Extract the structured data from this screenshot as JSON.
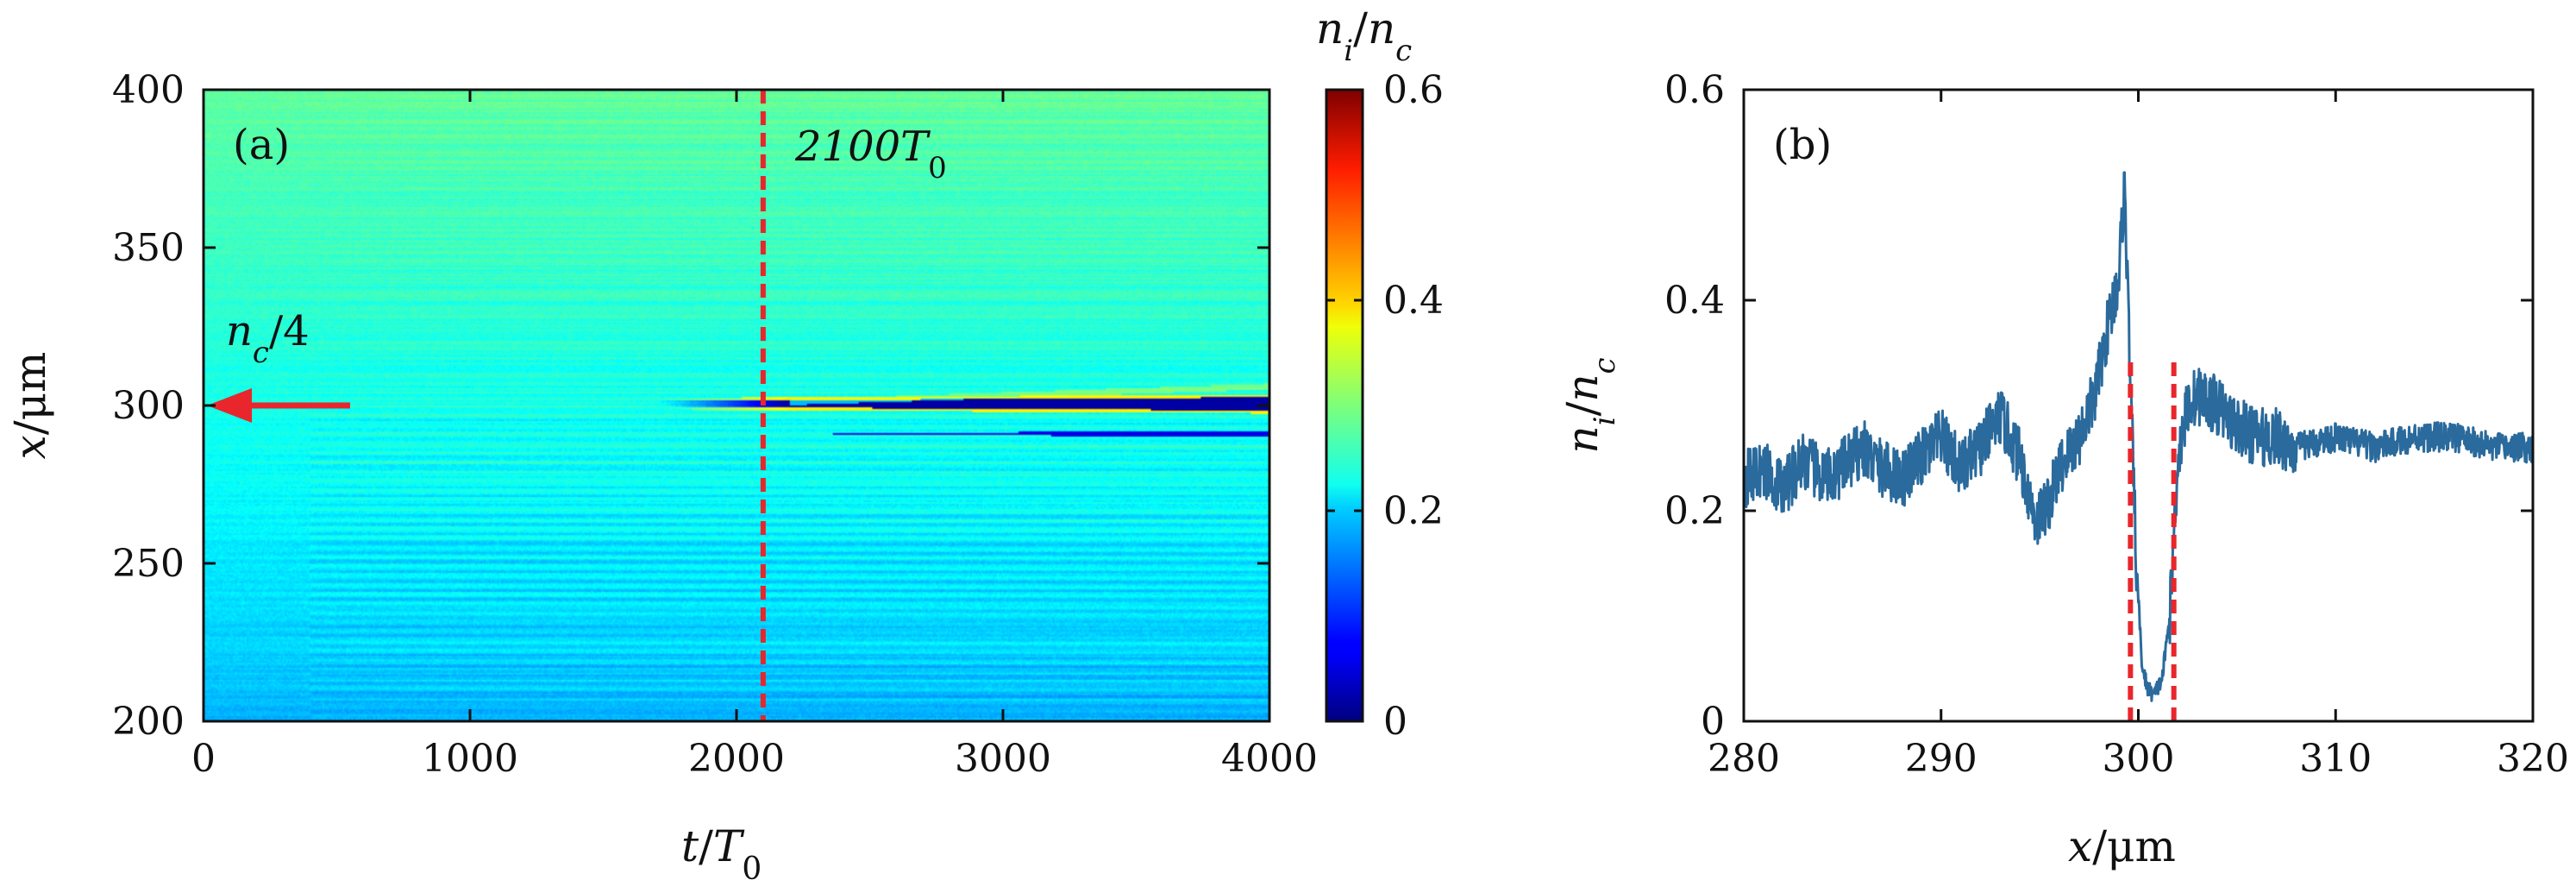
{
  "chart_data": [
    {
      "panel": "(a)",
      "type": "heatmap",
      "xlabel": "t/T0",
      "ylabel": "x/μm",
      "xlim": [
        0,
        4000
      ],
      "ylim": [
        200,
        400
      ],
      "xticks": [
        0,
        1000,
        2000,
        3000,
        4000
      ],
      "yticks": [
        200,
        250,
        300,
        350,
        400
      ],
      "colorbar": {
        "label": "ni/nc",
        "range": [
          0,
          0.6
        ],
        "ticks": [
          0,
          0.2,
          0.4,
          0.6
        ],
        "colormap": "jet"
      },
      "annotations": [
        {
          "type": "vline",
          "x": 2100,
          "label": "2100T0",
          "color": "#e8262b",
          "style": "dashed"
        },
        {
          "type": "arrow",
          "y": 300,
          "x_from": 550,
          "x_to": 0,
          "label": "nc/4",
          "color": "#e8262b"
        }
      ],
      "features": {
        "background_top": 0.28,
        "background_bottom": 0.18,
        "cavity_center_x": 300.5,
        "cavity_onset_t": 1700,
        "cavity_density": 0.02,
        "edge_density": 0.4
      }
    },
    {
      "panel": "(b)",
      "type": "line",
      "xlabel": "x/μm",
      "ylabel": "ni/nc",
      "xlim": [
        280,
        320
      ],
      "ylim": [
        0,
        0.6
      ],
      "xticks": [
        280,
        290,
        300,
        310,
        320
      ],
      "yticks": [
        0,
        0.2,
        0.4,
        0.6
      ],
      "series": [
        {
          "color": "#2a6a9c",
          "x": [
            280,
            281,
            282,
            283,
            284,
            285,
            286,
            287,
            288,
            289,
            290,
            291,
            292,
            293,
            294,
            294.8,
            295.5,
            296,
            297,
            297.8,
            298.5,
            299,
            299.3,
            299.6,
            299.9,
            300.2,
            300.5,
            300.8,
            301.2,
            301.6,
            302,
            302.5,
            303,
            304,
            305,
            306,
            307,
            308,
            310,
            312,
            314,
            316,
            318,
            320
          ],
          "values": [
            0.23,
            0.24,
            0.22,
            0.25,
            0.23,
            0.24,
            0.26,
            0.24,
            0.23,
            0.25,
            0.27,
            0.24,
            0.26,
            0.29,
            0.25,
            0.19,
            0.21,
            0.24,
            0.27,
            0.31,
            0.38,
            0.42,
            0.51,
            0.32,
            0.15,
            0.05,
            0.03,
            0.025,
            0.04,
            0.1,
            0.25,
            0.3,
            0.31,
            0.3,
            0.28,
            0.27,
            0.27,
            0.26,
            0.27,
            0.26,
            0.27,
            0.27,
            0.26,
            0.26
          ]
        }
      ],
      "annotations": [
        {
          "type": "vline",
          "x": 299.6,
          "y_top": 0.345,
          "color": "#e8262b",
          "style": "dashed"
        },
        {
          "type": "vline",
          "x": 301.8,
          "y_top": 0.345,
          "color": "#e8262b",
          "style": "dashed"
        }
      ]
    }
  ]
}
